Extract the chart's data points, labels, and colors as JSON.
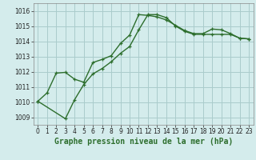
{
  "title": "Graphe pression niveau de la mer (hPa)",
  "bg_color": "#d4ecec",
  "grid_color": "#aacccc",
  "line_color": "#2d6e2d",
  "xlim": [
    -0.5,
    23.5
  ],
  "ylim": [
    1008.5,
    1016.5
  ],
  "yticks": [
    1009,
    1010,
    1011,
    1012,
    1013,
    1014,
    1015,
    1016
  ],
  "xticks": [
    0,
    1,
    2,
    3,
    4,
    5,
    6,
    7,
    8,
    9,
    10,
    11,
    12,
    13,
    14,
    15,
    16,
    17,
    18,
    19,
    20,
    21,
    22,
    23
  ],
  "line1_x": [
    0,
    1,
    2,
    3,
    4,
    5,
    6,
    7,
    8,
    9,
    10,
    11,
    12,
    13,
    14,
    15,
    16,
    17,
    18,
    19,
    20,
    21,
    22,
    23
  ],
  "line1_y": [
    1010.05,
    1010.6,
    1011.9,
    1011.95,
    1011.5,
    1011.3,
    1012.6,
    1012.8,
    1013.05,
    1013.85,
    1014.4,
    1015.75,
    1015.7,
    1015.6,
    1015.4,
    1015.05,
    1014.7,
    1014.5,
    1014.5,
    1014.8,
    1014.75,
    1014.5,
    1014.2,
    1014.15
  ],
  "line2_x": [
    0,
    3,
    4,
    5,
    6,
    7,
    8,
    9,
    10,
    11,
    12,
    13,
    14,
    15,
    16,
    17,
    18,
    19,
    20,
    21,
    22,
    23
  ],
  "line2_y": [
    1010.05,
    1008.9,
    1010.15,
    1011.15,
    1011.85,
    1012.2,
    1012.65,
    1013.2,
    1013.65,
    1014.75,
    1015.75,
    1015.75,
    1015.55,
    1015.0,
    1014.65,
    1014.45,
    1014.45,
    1014.45,
    1014.45,
    1014.45,
    1014.2,
    1014.15
  ],
  "xlabel_fontsize": 7,
  "tick_fontsize": 5.5,
  "linewidth": 1.0,
  "markersize": 3.5
}
